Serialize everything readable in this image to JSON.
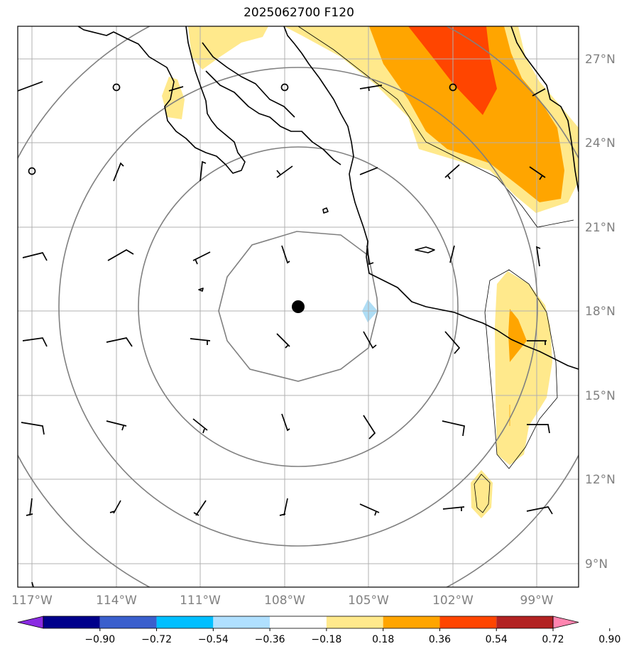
{
  "title": "2025062700 F120",
  "map": {
    "lon_labels": [
      "117°W",
      "114°W",
      "111°W",
      "108°W",
      "105°W",
      "102°W",
      "99°W"
    ],
    "lat_labels": [
      "27°N",
      "24°N",
      "21°N",
      "18°N",
      "15°N",
      "12°N",
      "9°N"
    ],
    "center_marker": {
      "lon": -107.6,
      "lat": 18.0
    },
    "field_colors": {
      "0.18-0.36": "#ffe98c",
      "0.36-0.54": "#ffa500",
      "0.54-0.72": "#ff4500",
      "-0.36--0.18": "#aeddf5"
    },
    "range_ring_color": "#808080",
    "coastline_color": "#000000"
  },
  "colorbar": {
    "tick_labels": [
      "−0.90",
      "−0.72",
      "−0.54",
      "−0.36",
      "−0.18",
      "0.18",
      "0.36",
      "0.54",
      "0.72",
      "0.90"
    ],
    "colors": [
      "#8a2be2",
      "#00008b",
      "#3a5fcd",
      "#00bfff",
      "#b0e0ff",
      "#ffffff",
      "#ffe98c",
      "#ffa500",
      "#ff4500",
      "#b22222",
      "#ff85b0"
    ]
  }
}
